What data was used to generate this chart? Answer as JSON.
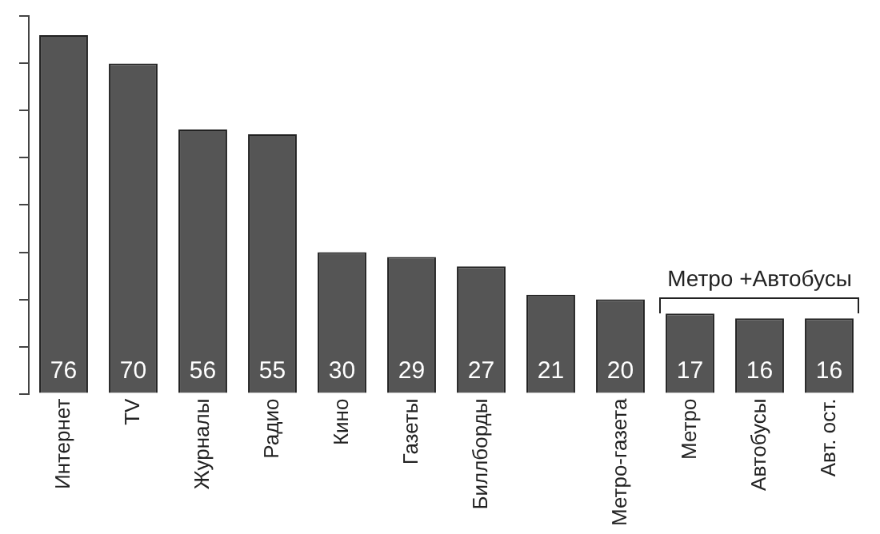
{
  "chart_data": {
    "type": "bar",
    "categories": [
      "Интернет",
      "TV",
      "Журналы",
      "Радио",
      "Кино",
      "Газеты",
      "Биллборды",
      null,
      "Метро-газета",
      "Метро",
      "Автобусы",
      "Авт. ост."
    ],
    "values": [
      76,
      70,
      56,
      55,
      30,
      29,
      27,
      21,
      20,
      17,
      16,
      16
    ],
    "color": "#555555",
    "ylim": [
      0,
      80
    ],
    "yticks": [
      {
        "value": 0,
        "label": null
      },
      {
        "value": 10,
        "label": null
      },
      {
        "value": 20,
        "label": null
      },
      {
        "value": 30,
        "label": null
      },
      {
        "value": 40,
        "label": null
      },
      {
        "value": 50,
        "label": null
      },
      {
        "value": 60,
        "label": null
      },
      {
        "value": 70,
        "label": null
      },
      {
        "value": 80,
        "label": null
      }
    ],
    "tick_labels": "x",
    "grid": false,
    "legend": false,
    "data_labels": true,
    "annotations": [
      "Метро +Автобусы"
    ]
  }
}
